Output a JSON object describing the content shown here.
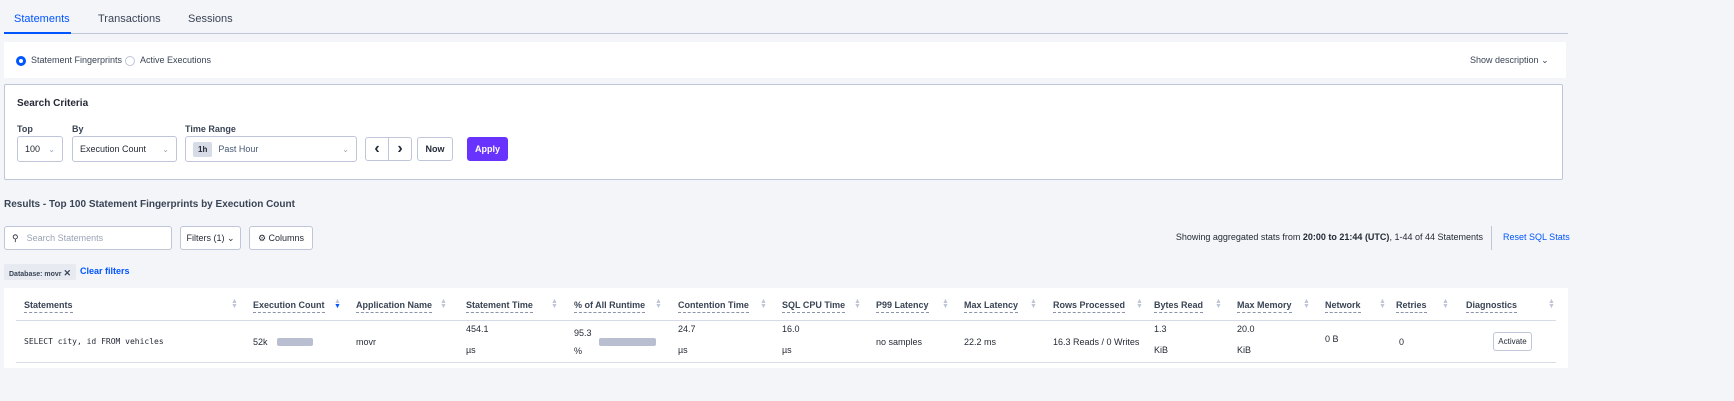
{
  "tabs": [
    "Statements",
    "Transactions",
    "Sessions"
  ],
  "view_mode": {
    "options": [
      "Statement Fingerprints",
      "Active Executions"
    ],
    "selected": "Statement Fingerprints",
    "show_description": "Show description"
  },
  "search_criteria": {
    "title": "Search Criteria",
    "top_label": "Top",
    "top_value": "100",
    "by_label": "By",
    "by_value": "Execution Count",
    "time_range_label": "Time Range",
    "time_badge": "1h",
    "time_value": "Past Hour",
    "prev": "‹",
    "next": "›",
    "now_label": "Now",
    "apply_label": "Apply"
  },
  "results": {
    "title": "Results - Top 100 Statement Fingerprints by Execution Count",
    "search_placeholder": "Search Statements",
    "filters_label": "Filters (1)",
    "columns_label": "Columns",
    "stats_prefix": "Showing aggregated stats from ",
    "stats_range": "20:00 to 21:44 (UTC)",
    "stats_suffix": ", 1-44 of 44 Statements",
    "reset_label": "Reset SQL Stats",
    "chip_label": "Database: movr",
    "clear_filters": "Clear filters"
  },
  "table": {
    "columns": [
      "Statements",
      "Execution Count",
      "Application Name",
      "Statement Time",
      "% of All Runtime",
      "Contention Time",
      "SQL CPU Time",
      "P99 Latency",
      "Max Latency",
      "Rows Processed",
      "Bytes Read",
      "Max Memory",
      "Network",
      "Retries",
      "Diagnostics"
    ],
    "sorted_column": "Execution Count",
    "rows": [
      {
        "statement": "SELECT city, id FROM vehicles",
        "execution_count": "52k",
        "execution_count_bar": 1.0,
        "app_name": "movr",
        "statement_time": "454.1",
        "statement_time_unit": "µs",
        "pct_runtime": "95.3",
        "pct_unit": "%",
        "pct_runtime_bar": 0.953,
        "contention_time": "24.7",
        "contention_unit": "µs",
        "sql_cpu": "16.0",
        "sql_cpu_unit": "µs",
        "p99": "no samples",
        "max_latency": "22.2 ms",
        "rows_processed": "16.3 Reads / 0 Writes",
        "bytes_read": "1.3",
        "bytes_read_unit": "KiB",
        "max_memory": "20.0",
        "max_memory_unit": "KiB",
        "network": "0 B",
        "retries": "0",
        "diagnostics_action": "Activate"
      }
    ]
  },
  "colors": {
    "accent": "#0055ff",
    "apply": "#6933ff",
    "bar": "#b9bfd0"
  }
}
